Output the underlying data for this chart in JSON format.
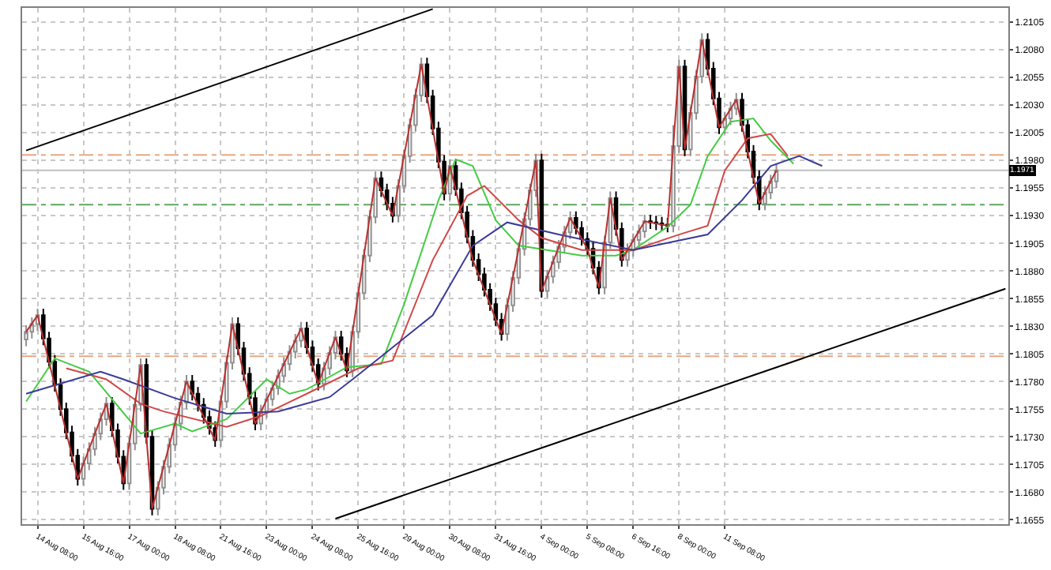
{
  "chart_data": {
    "type": "candlestick",
    "categories": [
      null,
      null,
      "14 Aug 08:00",
      null,
      null,
      null,
      null,
      null,
      null,
      null,
      "15 Aug 16:00",
      null,
      null,
      null,
      null,
      null,
      null,
      null,
      "17 Aug 00:00",
      null,
      null,
      null,
      null,
      null,
      null,
      null,
      "18 Aug 08:00",
      null,
      null,
      null,
      null,
      null,
      null,
      null,
      "21 Aug 16:00",
      null,
      null,
      null,
      null,
      null,
      null,
      null,
      "23 Aug 00:00",
      null,
      null,
      null,
      null,
      null,
      null,
      null,
      "24 Aug 08:00",
      null,
      null,
      null,
      null,
      null,
      null,
      null,
      "25 Aug 16:00",
      null,
      null,
      null,
      null,
      null,
      null,
      null,
      "29 Aug 00:00",
      null,
      null,
      null,
      null,
      null,
      null,
      null,
      "30 Aug 08:00",
      null,
      null,
      null,
      null,
      null,
      null,
      null,
      "31 Aug 16:00",
      null,
      null,
      null,
      null,
      null,
      null,
      null,
      "4 Sep 00:00",
      null,
      null,
      null,
      null,
      null,
      null,
      null,
      "5 Sep 08:00",
      null,
      null,
      null,
      null,
      null,
      null,
      null,
      "6 Sep 16:00",
      null,
      null,
      null,
      null,
      null,
      null,
      null,
      "8 Sep 00:00",
      null,
      null,
      null,
      null,
      null,
      null,
      null,
      "11 Sep 08:00",
      null,
      null,
      null,
      null,
      null,
      null,
      null,
      null,
      null,
      null,
      null,
      null,
      null,
      null,
      null,
      null,
      null,
      null,
      null,
      null,
      null,
      null,
      null,
      null,
      null,
      null,
      null,
      null,
      null,
      null,
      null,
      null,
      null,
      null,
      null,
      null,
      null,
      null,
      null,
      null,
      null,
      null,
      null,
      null,
      null,
      null,
      null,
      null,
      null
    ],
    "ylim": [
      1.1651,
      1.2118
    ],
    "yticks": [
      {
        "value": 1.1655,
        "label": "1.1655"
      },
      {
        "value": 1.168,
        "label": "1.1680"
      },
      {
        "value": 1.1705,
        "label": "1.1705"
      },
      {
        "value": 1.173,
        "label": "1.1730"
      },
      {
        "value": 1.1755,
        "label": "1.1755"
      },
      {
        "value": 1.178,
        "label": "1.1780"
      },
      {
        "value": 1.1805,
        "label": "1.1805"
      },
      {
        "value": 1.183,
        "label": "1.1830"
      },
      {
        "value": 1.1855,
        "label": "1.1855"
      },
      {
        "value": 1.188,
        "label": "1.1880"
      },
      {
        "value": 1.1905,
        "label": "1.1905"
      },
      {
        "value": 1.193,
        "label": "1.1930"
      },
      {
        "value": 1.1955,
        "label": "1.1955"
      },
      {
        "value": 1.198,
        "label": "1.1980"
      },
      {
        "value": 1.2005,
        "label": "1.2005"
      },
      {
        "value": 1.203,
        "label": "1.2030"
      },
      {
        "value": 1.2055,
        "label": "1.2055"
      },
      {
        "value": 1.208,
        "label": "1.2080"
      },
      {
        "value": 1.2105,
        "label": "1.2105"
      }
    ],
    "grid": true,
    "ref_lines": [
      {
        "axis": "y",
        "value": 1.1985,
        "color": "#e8a882",
        "line_style": "dashdot"
      },
      {
        "axis": "y",
        "value": 1.194,
        "color": "#5fa85f",
        "line_style": "dashdot"
      },
      {
        "axis": "y",
        "value": 1.1803,
        "color": "#e8a882",
        "line_style": "dashdot"
      },
      {
        "axis": "y",
        "value": 1.1971,
        "label": "1.1971",
        "color": "#c0c0c0",
        "line_style": "solid"
      }
    ],
    "series": [
      {
        "type": "line",
        "color": "#000000",
        "values": [
          1.1989,
          null,
          null,
          null,
          null,
          null,
          null,
          null,
          null,
          null,
          null,
          null,
          null,
          null,
          null,
          null,
          null,
          null,
          null,
          null,
          null,
          null,
          null,
          null,
          null,
          null,
          null,
          null,
          null,
          null,
          null,
          null,
          null,
          null,
          null,
          null,
          null,
          null,
          null,
          null,
          null,
          null,
          null,
          null,
          null,
          null,
          null,
          null,
          null,
          null,
          null,
          null,
          null,
          null,
          null,
          null,
          null,
          null,
          null,
          null,
          null,
          null,
          null,
          null,
          null,
          null,
          null,
          null,
          null,
          null,
          null,
          1.2117,
          null,
          null,
          null,
          null,
          null,
          null,
          null,
          null,
          null,
          null,
          null,
          null,
          null,
          null,
          null,
          null,
          null,
          null,
          null,
          null,
          null,
          null,
          null,
          null,
          null,
          null,
          null,
          null,
          null,
          null,
          null,
          null,
          null,
          null,
          null,
          null,
          null,
          null,
          null,
          null,
          null,
          null,
          null,
          null,
          null,
          null,
          null,
          null,
          null,
          null,
          null,
          null,
          null,
          null,
          null,
          null,
          null,
          null,
          null,
          null,
          null,
          null,
          null,
          null,
          null,
          null,
          null,
          null,
          null,
          null,
          null,
          null,
          null,
          null,
          null,
          null,
          null,
          null,
          null,
          null,
          null,
          null,
          null,
          null,
          null,
          null,
          null,
          null,
          null,
          null,
          null,
          null,
          null,
          null,
          null,
          null,
          null,
          null,
          null,
          null
        ]
      },
      {
        "type": "line",
        "color": "#000000",
        "values": [
          null,
          null,
          null,
          null,
          null,
          null,
          null,
          null,
          null,
          null,
          null,
          null,
          null,
          null,
          null,
          null,
          null,
          null,
          null,
          null,
          null,
          null,
          null,
          null,
          null,
          null,
          null,
          null,
          null,
          null,
          null,
          null,
          null,
          null,
          null,
          null,
          null,
          null,
          null,
          null,
          null,
          null,
          null,
          null,
          null,
          null,
          null,
          null,
          null,
          null,
          null,
          null,
          null,
          null,
          1.1656,
          null,
          null,
          null,
          null,
          null,
          null,
          null,
          null,
          null,
          null,
          null,
          null,
          null,
          null,
          null,
          null,
          null,
          null,
          null,
          null,
          null,
          null,
          null,
          null,
          null,
          null,
          null,
          null,
          null,
          null,
          null,
          null,
          null,
          null,
          null,
          null,
          null,
          null,
          null,
          null,
          null,
          null,
          null,
          null,
          null,
          null,
          null,
          null,
          null,
          null,
          null,
          null,
          null,
          null,
          null,
          null,
          null,
          null,
          null,
          null,
          null,
          null,
          null,
          null,
          null,
          null,
          null,
          null,
          null,
          null,
          null,
          null,
          null,
          null,
          null,
          null,
          null,
          null,
          null,
          null,
          null,
          null,
          null,
          null,
          null,
          null,
          null,
          null,
          null,
          null,
          null,
          null,
          null,
          null,
          null,
          null,
          null,
          null,
          null,
          null,
          null,
          null,
          null,
          null,
          null,
          null,
          null,
          null,
          null,
          null,
          null,
          null,
          null,
          null,
          null,
          null,
          1.1864
        ]
      },
      {
        "type": "line",
        "color": "#44cc44",
        "values": [
          1.1762,
          null,
          null,
          null,
          null,
          1.1801,
          null,
          null,
          null,
          null,
          null,
          1.1789,
          null,
          null,
          null,
          null,
          null,
          null,
          null,
          null,
          1.1733,
          null,
          null,
          null,
          null,
          null,
          1.1742,
          null,
          null,
          1.1735,
          null,
          null,
          null,
          null,
          null,
          1.1746,
          null,
          null,
          null,
          null,
          null,
          null,
          1.1782,
          null,
          null,
          null,
          1.1769,
          null,
          null,
          1.1773,
          null,
          null,
          null,
          null,
          null,
          null,
          1.1793,
          null,
          null,
          null,
          null,
          null,
          1.1796,
          null,
          null,
          null,
          1.185,
          null,
          null,
          null,
          null,
          null,
          1.1944,
          null,
          null,
          1.1981,
          null,
          null,
          1.1975,
          null,
          null,
          null,
          1.1926,
          null,
          null,
          null,
          1.1903,
          null,
          null,
          null,
          null,
          1.1899,
          null,
          null,
          null,
          null,
          null,
          1.1894,
          null,
          null,
          null,
          null,
          null,
          1.1894,
          null,
          null,
          1.1899,
          null,
          null,
          null,
          null,
          null,
          1.192,
          null,
          null,
          null,
          1.194,
          null,
          null,
          1.1984,
          null,
          null,
          null,
          1.2015,
          null,
          null,
          null,
          1.2018,
          null,
          null,
          1.1998,
          null,
          null,
          null,
          1.1977,
          null,
          null,
          null,
          null,
          null,
          null,
          null,
          null,
          null,
          null,
          null,
          null,
          null,
          null,
          null,
          null,
          null,
          null,
          null,
          null,
          null,
          null,
          null,
          null,
          null,
          null,
          null,
          null,
          null,
          null,
          null,
          null,
          null,
          null,
          null,
          null,
          null
        ]
      },
      {
        "type": "line",
        "color": "#d04848",
        "values": [
          null,
          null,
          null,
          null,
          null,
          null,
          null,
          1.1792,
          null,
          null,
          null,
          null,
          null,
          null,
          1.1782,
          null,
          null,
          null,
          null,
          null,
          1.176,
          null,
          null,
          null,
          1.1753,
          null,
          null,
          null,
          null,
          null,
          null,
          null,
          null,
          null,
          null,
          1.1739,
          null,
          null,
          null,
          null,
          null,
          1.1749,
          null,
          null,
          null,
          null,
          null,
          null,
          null,
          1.1769,
          null,
          null,
          null,
          null,
          null,
          null,
          null,
          null,
          1.1792,
          null,
          null,
          null,
          null,
          null,
          1.1799,
          null,
          null,
          null,
          null,
          null,
          null,
          1.189,
          null,
          null,
          null,
          null,
          null,
          1.1948,
          null,
          null,
          1.1957,
          null,
          null,
          null,
          null,
          null,
          1.1926,
          null,
          null,
          null,
          1.191,
          null,
          null,
          null,
          null,
          null,
          null,
          1.1899,
          null,
          null,
          null,
          null,
          null,
          null,
          null,
          null,
          1.1899,
          null,
          null,
          null,
          null,
          null,
          null,
          null,
          1.1913,
          null,
          null,
          null,
          null,
          1.1921,
          null,
          null,
          1.1971,
          null,
          null,
          null,
          1.2,
          null,
          null,
          null,
          1.2004,
          null,
          null,
          1.1984,
          null,
          null,
          null,
          null,
          null,
          null,
          null,
          null,
          null,
          null,
          null,
          null,
          null,
          null,
          null,
          null,
          null,
          null,
          null,
          null,
          null,
          null,
          null,
          null,
          null,
          null,
          null,
          null,
          null,
          null,
          null,
          null,
          null,
          null,
          null,
          null,
          null,
          null
        ]
      },
      {
        "type": "line",
        "color": "#3a3a9a",
        "values": [
          1.1769,
          null,
          null,
          null,
          null,
          null,
          null,
          null,
          null,
          null,
          null,
          null,
          null,
          1.1789,
          null,
          null,
          null,
          1.1782,
          null,
          null,
          null,
          null,
          null,
          null,
          null,
          null,
          1.1765,
          null,
          null,
          null,
          null,
          null,
          null,
          null,
          null,
          1.1751,
          null,
          null,
          null,
          null,
          null,
          null,
          null,
          null,
          1.1753,
          null,
          null,
          null,
          null,
          null,
          null,
          null,
          null,
          1.1766,
          null,
          null,
          null,
          1.1782,
          null,
          null,
          null,
          null,
          null,
          null,
          null,
          null,
          null,
          null,
          null,
          null,
          null,
          1.184,
          null,
          null,
          null,
          null,
          null,
          null,
          1.1903,
          null,
          null,
          null,
          null,
          null,
          1.1924,
          null,
          null,
          null,
          null,
          null,
          null,
          null,
          null,
          1.1913,
          null,
          null,
          null,
          null,
          null,
          null,
          null,
          null,
          null,
          null,
          null,
          null,
          1.1899,
          null,
          null,
          null,
          null,
          null,
          null,
          null,
          null,
          null,
          null,
          null,
          null,
          1.1913,
          null,
          null,
          null,
          null,
          null,
          1.1944,
          null,
          null,
          null,
          null,
          1.1975,
          null,
          null,
          null,
          null,
          1.1984,
          null,
          null,
          null,
          1.1975,
          null,
          null,
          null,
          null,
          null,
          null,
          null,
          null,
          null,
          null,
          null,
          null,
          null,
          null,
          null,
          null,
          null,
          null,
          null,
          null,
          null,
          null,
          null,
          null,
          null,
          null,
          null,
          null,
          null,
          null,
          null,
          null
        ]
      },
      {
        "type": "line",
        "color": "#b83030",
        "values": [
          1.1825,
          null,
          1.184,
          null,
          null,
          null,
          null,
          null,
          null,
          1.1692,
          null,
          null,
          null,
          null,
          1.176,
          null,
          null,
          1.1688,
          null,
          null,
          1.1795,
          null,
          1.1665,
          null,
          null,
          null,
          null,
          null,
          1.178,
          null,
          null,
          null,
          null,
          1.1727,
          null,
          null,
          1.1832,
          null,
          null,
          null,
          1.1742,
          null,
          null,
          null,
          null,
          null,
          null,
          null,
          1.1828,
          null,
          null,
          1.1778,
          null,
          null,
          1.182,
          null,
          1.179,
          null,
          null,
          null,
          null,
          1.1964,
          null,
          null,
          1.193,
          null,
          null,
          null,
          null,
          1.2067,
          null,
          null,
          null,
          1.195,
          1.1975,
          null,
          null,
          null,
          1.189,
          null,
          null,
          null,
          null,
          1.1823,
          null,
          null,
          1.19,
          null,
          null,
          1.198,
          1.1862,
          null,
          null,
          null,
          null,
          1.1928,
          null,
          null,
          1.19,
          null,
          1.1865,
          null,
          1.1946,
          null,
          1.189,
          null,
          null,
          null,
          1.1925,
          null,
          null,
          null,
          1.1921,
          null,
          1.2065,
          1.199,
          null,
          null,
          1.2089,
          null,
          null,
          1.201,
          null,
          null,
          1.2035,
          null,
          null,
          null,
          1.1941,
          null,
          null,
          1.1971,
          null,
          null,
          null,
          null,
          null,
          null,
          null,
          null,
          null,
          null,
          null,
          null,
          null,
          null,
          null,
          null,
          null,
          null,
          null,
          null,
          null,
          null,
          null,
          null,
          null,
          null,
          null,
          null,
          null,
          null,
          null,
          null,
          null,
          null,
          null,
          null,
          null,
          null,
          null,
          null
        ]
      },
      {
        "colors": [
          "#909090",
          "#909090",
          "#909090",
          "#000000",
          "#000000",
          "#000000",
          "#000000",
          "#000000",
          "#000000",
          "#000000",
          "#909090",
          "#909090",
          "#909090",
          "#909090",
          "#909090",
          "#000000",
          "#000000",
          "#000000",
          "#909090",
          "#909090",
          "#909090",
          "#000000",
          "#000000",
          "#909090",
          "#909090",
          "#909090",
          "#909090",
          "#909090",
          "#909090",
          "#000000",
          "#000000",
          "#000000",
          "#000000",
          "#000000",
          "#909090",
          "#909090",
          "#909090",
          "#000000",
          "#000000",
          "#000000",
          "#000000",
          "#909090",
          "#909090",
          "#909090",
          "#909090",
          "#909090",
          "#909090",
          "#909090",
          "#909090",
          "#000000",
          "#000000",
          "#000000",
          "#909090",
          "#909090",
          "#909090",
          "#000000",
          "#000000",
          "#909090",
          "#909090",
          "#909090",
          "#909090",
          "#909090",
          "#000000",
          "#000000",
          "#000000",
          "#909090",
          "#909090",
          "#909090",
          "#909090",
          "#909090",
          "#000000",
          "#000000",
          "#000000",
          "#000000",
          "#909090",
          "#000000",
          "#000000",
          "#000000",
          "#000000",
          "#000000",
          "#000000",
          "#000000",
          "#000000",
          "#000000",
          "#909090",
          "#909090",
          "#909090",
          "#909090",
          "#909090",
          "#909090",
          "#000000",
          "#909090",
          "#909090",
          "#909090",
          "#909090",
          "#909090",
          "#000000",
          "#000000",
          "#000000",
          "#000000",
          "#000000",
          "#909090",
          "#909090",
          "#000000",
          "#000000",
          "#909090",
          "#909090",
          "#909090",
          "#909090",
          "#000000",
          "#000000",
          "#000000",
          "#000000",
          "#909090",
          "#909090",
          "#000000",
          "#909090",
          "#909090",
          "#909090",
          "#000000",
          "#000000",
          "#000000",
          "#909090",
          "#909090",
          "#909090",
          "#000000",
          "#000000",
          "#000000",
          "#000000",
          "#909090",
          "#909090",
          "#909090",
          null,
          null,
          null,
          null,
          null,
          null,
          null,
          null,
          null,
          null,
          null,
          null,
          null,
          null,
          null,
          null,
          null,
          null,
          null,
          null,
          null,
          null,
          null,
          null,
          null,
          null,
          null,
          null,
          null,
          null,
          null,
          null,
          null,
          null,
          null,
          null,
          null,
          null,
          null,
          null
        ],
        "ohlc": [
          [
            1.1818,
            1.1831,
            1.1812,
            1.1825
          ],
          [
            1.1825,
            1.1838,
            1.1819,
            1.1832
          ],
          [
            1.1832,
            1.1846,
            1.1826,
            1.184
          ],
          [
            1.184,
            1.1846,
            1.1813,
            1.1819
          ],
          [
            1.1819,
            1.1825,
            1.1792,
            1.1798
          ],
          [
            1.1798,
            1.1804,
            1.1771,
            1.1777
          ],
          [
            1.1777,
            1.1783,
            1.1749,
            1.1755
          ],
          [
            1.1755,
            1.1761,
            1.1728,
            1.1734
          ],
          [
            1.1734,
            1.174,
            1.1707,
            1.1713
          ],
          [
            1.1713,
            1.1719,
            1.1686,
            1.1692
          ],
          [
            1.1692,
            1.1712,
            1.1686,
            1.1706
          ],
          [
            1.1706,
            1.1725,
            1.17,
            1.1719
          ],
          [
            1.1719,
            1.1739,
            1.1713,
            1.1733
          ],
          [
            1.1733,
            1.1752,
            1.1727,
            1.1746
          ],
          [
            1.1746,
            1.1766,
            1.174,
            1.176
          ],
          [
            1.176,
            1.1766,
            1.173,
            1.1736
          ],
          [
            1.1736,
            1.1742,
            1.1706,
            1.1712
          ],
          [
            1.1712,
            1.1718,
            1.1682,
            1.1688
          ],
          [
            1.1688,
            1.173,
            1.1682,
            1.1724
          ],
          [
            1.1724,
            1.1765,
            1.1718,
            1.1759
          ],
          [
            1.1759,
            1.1801,
            1.1753,
            1.1795
          ],
          [
            1.1795,
            1.1801,
            1.1724,
            1.173
          ],
          [
            1.173,
            1.1736,
            1.1659,
            1.1665
          ],
          [
            1.1665,
            1.169,
            1.1659,
            1.1684
          ],
          [
            1.1684,
            1.1709,
            1.1678,
            1.1703
          ],
          [
            1.1703,
            1.1729,
            1.1697,
            1.1723
          ],
          [
            1.1723,
            1.1748,
            1.1717,
            1.1742
          ],
          [
            1.1742,
            1.1767,
            1.1736,
            1.1761
          ],
          [
            1.1761,
            1.1786,
            1.1755,
            1.178
          ],
          [
            1.178,
            1.1786,
            1.1763,
            1.1769
          ],
          [
            1.1769,
            1.1775,
            1.1753,
            1.1759
          ],
          [
            1.1759,
            1.1765,
            1.1742,
            1.1748
          ],
          [
            1.1748,
            1.1754,
            1.1732,
            1.1738
          ],
          [
            1.1738,
            1.1744,
            1.1721,
            1.1727
          ],
          [
            1.1727,
            1.1768,
            1.1721,
            1.1762
          ],
          [
            1.1762,
            1.1803,
            1.1756,
            1.1797
          ],
          [
            1.1797,
            1.1838,
            1.1791,
            1.1832
          ],
          [
            1.1832,
            1.1838,
            1.1804,
            1.181
          ],
          [
            1.181,
            1.1816,
            1.1781,
            1.1787
          ],
          [
            1.1787,
            1.1793,
            1.1759,
            1.1765
          ],
          [
            1.1765,
            1.1771,
            1.1736,
            1.1742
          ],
          [
            1.1742,
            1.1759,
            1.1736,
            1.1753
          ],
          [
            1.1753,
            1.177,
            1.1747,
            1.1764
          ],
          [
            1.1764,
            1.178,
            1.1758,
            1.1774
          ],
          [
            1.1774,
            1.1791,
            1.1768,
            1.1785
          ],
          [
            1.1785,
            1.1802,
            1.1779,
            1.1796
          ],
          [
            1.1796,
            1.1813,
            1.179,
            1.1807
          ],
          [
            1.1807,
            1.1823,
            1.1801,
            1.1817
          ],
          [
            1.1817,
            1.1834,
            1.1811,
            1.1828
          ],
          [
            1.1828,
            1.1834,
            1.1805,
            1.1811
          ],
          [
            1.1811,
            1.1817,
            1.1789,
            1.1795
          ],
          [
            1.1795,
            1.1801,
            1.1772,
            1.1778
          ],
          [
            1.1778,
            1.1798,
            1.1772,
            1.1792
          ],
          [
            1.1792,
            1.1812,
            1.1786,
            1.1806
          ],
          [
            1.1806,
            1.1826,
            1.18,
            1.182
          ],
          [
            1.182,
            1.1826,
            1.1799,
            1.1805
          ],
          [
            1.1805,
            1.1811,
            1.1784,
            1.179
          ],
          [
            1.179,
            1.1831,
            1.1784,
            1.1825
          ],
          [
            1.1825,
            1.1866,
            1.1819,
            1.186
          ],
          [
            1.186,
            1.19,
            1.1854,
            1.1894
          ],
          [
            1.1894,
            1.1935,
            1.1888,
            1.1929
          ],
          [
            1.1929,
            1.197,
            1.1923,
            1.1964
          ],
          [
            1.1964,
            1.197,
            1.1947,
            1.1953
          ],
          [
            1.1953,
            1.1959,
            1.1935,
            1.1941
          ],
          [
            1.1941,
            1.1947,
            1.1924,
            1.193
          ],
          [
            1.193,
            1.1963,
            1.1924,
            1.1957
          ],
          [
            1.1957,
            1.199,
            1.1951,
            1.1984
          ],
          [
            1.1984,
            1.2018,
            1.1978,
            1.2012
          ],
          [
            1.2012,
            1.2045,
            1.2006,
            1.2039
          ],
          [
            1.2039,
            1.2073,
            1.2033,
            1.2067
          ],
          [
            1.2067,
            1.2073,
            1.2032,
            1.2038
          ],
          [
            1.2038,
            1.2044,
            1.2003,
            1.2009
          ],
          [
            1.2009,
            1.2015,
            1.1973,
            1.1979
          ],
          [
            1.1979,
            1.1985,
            1.1944,
            1.195
          ],
          [
            1.195,
            1.1981,
            1.1944,
            1.1975
          ],
          [
            1.1975,
            1.1981,
            1.1948,
            1.1954
          ],
          [
            1.1954,
            1.196,
            1.1927,
            1.1933
          ],
          [
            1.1933,
            1.1939,
            1.1905,
            1.1911
          ],
          [
            1.1911,
            1.1917,
            1.1884,
            1.189
          ],
          [
            1.189,
            1.1896,
            1.1871,
            1.1877
          ],
          [
            1.1877,
            1.1883,
            1.1857,
            1.1863
          ],
          [
            1.1863,
            1.1869,
            1.1844,
            1.185
          ],
          [
            1.185,
            1.1856,
            1.183,
            1.1836
          ],
          [
            1.1836,
            1.1842,
            1.1817,
            1.1823
          ],
          [
            1.1823,
            1.1855,
            1.1817,
            1.1849
          ],
          [
            1.1849,
            1.188,
            1.1843,
            1.1874
          ],
          [
            1.1874,
            1.1906,
            1.1868,
            1.19
          ],
          [
            1.19,
            1.1933,
            1.1894,
            1.1927
          ],
          [
            1.1927,
            1.1959,
            1.1921,
            1.1953
          ],
          [
            1.1953,
            1.1986,
            1.1947,
            1.198
          ],
          [
            1.198,
            1.1986,
            1.1856,
            1.1862
          ],
          [
            1.1862,
            1.1881,
            1.1856,
            1.1875
          ],
          [
            1.1875,
            1.1894,
            1.1869,
            1.1888
          ],
          [
            1.1888,
            1.1908,
            1.1882,
            1.1902
          ],
          [
            1.1902,
            1.1921,
            1.1896,
            1.1915
          ],
          [
            1.1915,
            1.1934,
            1.1909,
            1.1928
          ],
          [
            1.1928,
            1.1934,
            1.1913,
            1.1919
          ],
          [
            1.1919,
            1.1925,
            1.1903,
            1.1909
          ],
          [
            1.1909,
            1.1915,
            1.1894,
            1.19
          ],
          [
            1.19,
            1.1906,
            1.1877,
            1.1883
          ],
          [
            1.1883,
            1.1889,
            1.1859,
            1.1865
          ],
          [
            1.1865,
            1.1912,
            1.1859,
            1.1906
          ],
          [
            1.1906,
            1.1952,
            1.19,
            1.1946
          ],
          [
            1.1946,
            1.1952,
            1.1912,
            1.1918
          ],
          [
            1.1918,
            1.1924,
            1.1884,
            1.189
          ],
          [
            1.189,
            1.1905,
            1.1884,
            1.1899
          ],
          [
            1.1899,
            1.1914,
            1.1893,
            1.1908
          ],
          [
            1.1908,
            1.1922,
            1.1902,
            1.1916
          ],
          [
            1.1916,
            1.1931,
            1.191,
            1.1925
          ],
          [
            1.1925,
            1.1931,
            1.1918,
            1.1924
          ],
          [
            1.1924,
            1.193,
            1.1917,
            1.1923
          ],
          [
            1.1923,
            1.1929,
            1.1916,
            1.1922
          ],
          [
            1.1922,
            1.1928,
            1.1915,
            1.1921
          ],
          [
            1.1921,
            1.2012,
            1.1915,
            1.1993
          ],
          [
            1.1993,
            1.2071,
            1.1987,
            1.2065
          ],
          [
            1.2065,
            1.2071,
            1.1984,
            1.199
          ],
          [
            1.199,
            1.2029,
            1.1984,
            1.2023
          ],
          [
            1.2023,
            1.2062,
            1.2017,
            1.2056
          ],
          [
            1.2056,
            1.2095,
            1.205,
            1.2089
          ],
          [
            1.2089,
            1.2095,
            1.2057,
            1.2063
          ],
          [
            1.2063,
            1.2069,
            1.203,
            1.2036
          ],
          [
            1.2036,
            1.2042,
            1.2004,
            1.201
          ],
          [
            1.201,
            1.2024,
            1.2004,
            1.2018
          ],
          [
            1.2018,
            1.2033,
            1.2012,
            1.2027
          ],
          [
            1.2027,
            1.2041,
            1.2021,
            1.2035
          ],
          [
            1.2035,
            1.2041,
            1.2006,
            1.2012
          ],
          [
            1.2012,
            1.2018,
            1.1982,
            1.1988
          ],
          [
            1.1988,
            1.1994,
            1.1959,
            1.1965
          ],
          [
            1.1965,
            1.1971,
            1.1935,
            1.1941
          ],
          [
            1.1941,
            1.1957,
            1.1935,
            1.1951
          ],
          [
            1.1951,
            1.1967,
            1.1945,
            1.1961
          ],
          [
            1.1961,
            1.1977,
            1.1955,
            1.1971
          ],
          null,
          null,
          null,
          null,
          null,
          null,
          null,
          null,
          null,
          null,
          null,
          null,
          null,
          null,
          null,
          null,
          null,
          null,
          null,
          null,
          null,
          null,
          null,
          null,
          null,
          null,
          null,
          null,
          null,
          null,
          null,
          null,
          null,
          null,
          null,
          null,
          null,
          null,
          null,
          null
        ]
      }
    ]
  }
}
